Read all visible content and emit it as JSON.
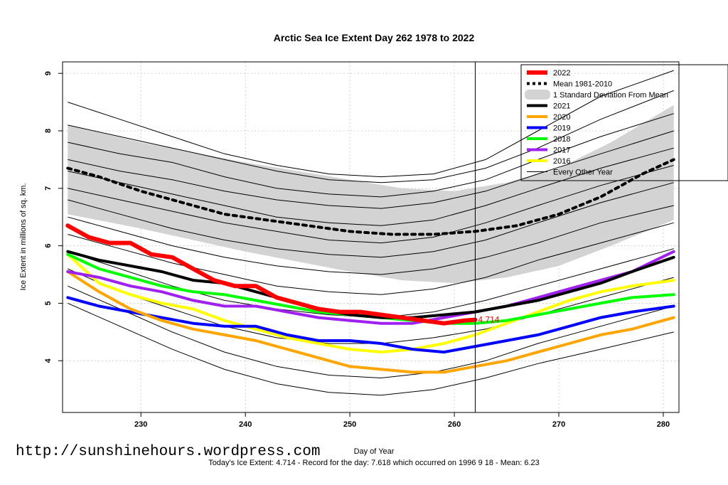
{
  "chart_data": {
    "type": "line",
    "title": "Arctic Sea Ice Extent Day 262 1978 to 2022",
    "xlabel": "Day of Year",
    "ylabel": "Ice Extent in millions of sq. km.",
    "xlim": [
      222.5,
      281.5
    ],
    "ylim": [
      3.1,
      9.2
    ],
    "xticks": [
      230,
      240,
      250,
      260,
      270,
      280
    ],
    "yticks": [
      4,
      5,
      6,
      7,
      8,
      9
    ],
    "grid": true,
    "current_day": 262,
    "current_value": 4.714,
    "current_value_label": "4.714",
    "legend_position": "top-right",
    "band": {
      "name": "1 Standard Deviation From Mean",
      "color": "#d3d3d3",
      "x": [
        223,
        230,
        240,
        250,
        255,
        260,
        265,
        270,
        275,
        281
      ],
      "upper": [
        8.1,
        7.8,
        7.45,
        7.15,
        7.0,
        6.95,
        7.1,
        7.35,
        7.8,
        8.45
      ],
      "lower": [
        6.55,
        6.3,
        5.9,
        5.55,
        5.4,
        5.35,
        5.45,
        5.65,
        6.0,
        6.45
      ]
    },
    "series": [
      {
        "name": "2022",
        "color": "#ff0000",
        "width": 6,
        "dash": "",
        "x": [
          223,
          225,
          227,
          229,
          231,
          233,
          235,
          237,
          239,
          241,
          243,
          245,
          247,
          249,
          251,
          253,
          255,
          257,
          259,
          261,
          262
        ],
        "y": [
          6.35,
          6.15,
          6.05,
          6.05,
          5.85,
          5.8,
          5.6,
          5.4,
          5.3,
          5.3,
          5.1,
          5.0,
          4.9,
          4.85,
          4.85,
          4.8,
          4.75,
          4.7,
          4.65,
          4.7,
          4.714
        ]
      },
      {
        "name": "Mean 1981-2010",
        "color": "#000000",
        "width": 4,
        "dash": "5,6",
        "x": [
          223,
          226,
          230,
          234,
          238,
          242,
          246,
          250,
          254,
          258,
          262,
          266,
          270,
          274,
          278,
          281
        ],
        "y": [
          7.35,
          7.2,
          6.95,
          6.75,
          6.55,
          6.45,
          6.35,
          6.25,
          6.2,
          6.2,
          6.25,
          6.35,
          6.55,
          6.85,
          7.25,
          7.5
        ]
      },
      {
        "name": "2021",
        "color": "#000000",
        "width": 4,
        "dash": "",
        "x": [
          223,
          226,
          229,
          232,
          235,
          238,
          241,
          244,
          247,
          250,
          253,
          256,
          259,
          262,
          265,
          268,
          271,
          274,
          277,
          281
        ],
        "y": [
          5.9,
          5.75,
          5.65,
          5.55,
          5.4,
          5.35,
          5.2,
          5.05,
          4.9,
          4.8,
          4.75,
          4.75,
          4.8,
          4.85,
          4.95,
          5.05,
          5.2,
          5.35,
          5.55,
          5.8
        ]
      },
      {
        "name": "2020",
        "color": "#ffa500",
        "width": 4,
        "dash": "",
        "x": [
          223,
          226,
          229,
          232,
          235,
          238,
          241,
          244,
          247,
          250,
          253,
          256,
          259,
          262,
          265,
          268,
          271,
          274,
          277,
          281
        ],
        "y": [
          5.55,
          5.2,
          4.9,
          4.7,
          4.55,
          4.45,
          4.35,
          4.2,
          4.05,
          3.9,
          3.85,
          3.8,
          3.8,
          3.9,
          4.0,
          4.15,
          4.3,
          4.45,
          4.55,
          4.75
        ]
      },
      {
        "name": "2019",
        "color": "#0000ff",
        "width": 4,
        "dash": "",
        "x": [
          223,
          226,
          229,
          232,
          235,
          238,
          241,
          244,
          247,
          250,
          253,
          256,
          259,
          262,
          265,
          268,
          271,
          274,
          277,
          281
        ],
        "y": [
          5.1,
          4.95,
          4.85,
          4.75,
          4.65,
          4.6,
          4.6,
          4.45,
          4.35,
          4.35,
          4.3,
          4.2,
          4.15,
          4.25,
          4.35,
          4.45,
          4.6,
          4.75,
          4.85,
          4.95
        ]
      },
      {
        "name": "2018",
        "color": "#00ff00",
        "width": 4,
        "dash": "",
        "x": [
          223,
          226,
          229,
          232,
          235,
          238,
          241,
          244,
          247,
          250,
          253,
          256,
          259,
          262,
          265,
          268,
          271,
          274,
          277,
          281
        ],
        "y": [
          5.85,
          5.6,
          5.45,
          5.3,
          5.2,
          5.15,
          5.05,
          4.95,
          4.85,
          4.8,
          4.75,
          4.7,
          4.65,
          4.65,
          4.7,
          4.8,
          4.9,
          5.0,
          5.1,
          5.15
        ]
      },
      {
        "name": "2017",
        "color": "#a020f0",
        "width": 4,
        "dash": "",
        "x": [
          223,
          226,
          229,
          232,
          235,
          238,
          241,
          244,
          247,
          250,
          253,
          256,
          259,
          262,
          265,
          268,
          271,
          274,
          277,
          281
        ],
        "y": [
          5.55,
          5.45,
          5.3,
          5.2,
          5.05,
          4.95,
          4.95,
          4.85,
          4.75,
          4.7,
          4.65,
          4.65,
          4.75,
          4.85,
          4.95,
          5.1,
          5.25,
          5.4,
          5.55,
          5.9
        ]
      },
      {
        "name": "2016",
        "color": "#ffff00",
        "width": 4,
        "dash": "",
        "x": [
          223,
          226,
          229,
          232,
          235,
          238,
          241,
          244,
          247,
          250,
          253,
          256,
          259,
          262,
          265,
          268,
          271,
          274,
          277,
          281
        ],
        "y": [
          5.85,
          5.35,
          5.15,
          5.0,
          4.9,
          4.7,
          4.55,
          4.4,
          4.3,
          4.2,
          4.15,
          4.2,
          4.3,
          4.45,
          4.65,
          4.85,
          5.05,
          5.2,
          5.3,
          5.4
        ]
      },
      {
        "name": "Every Other Year",
        "color": "#000000",
        "width": 1,
        "dash": "",
        "x": [],
        "y": []
      }
    ],
    "other_years": [
      [
        8.5,
        8.2,
        7.9,
        7.6,
        7.4,
        7.25,
        7.2,
        7.25,
        7.5,
        8.0,
        8.6,
        9.05
      ],
      [
        8.1,
        7.9,
        7.7,
        7.5,
        7.3,
        7.15,
        7.1,
        7.15,
        7.35,
        7.7,
        8.2,
        8.7
      ],
      [
        7.8,
        7.6,
        7.45,
        7.2,
        7.0,
        6.9,
        6.85,
        6.95,
        7.15,
        7.5,
        7.9,
        8.3
      ],
      [
        7.5,
        7.3,
        7.15,
        6.95,
        6.8,
        6.7,
        6.65,
        6.75,
        6.95,
        7.25,
        7.6,
        8.0
      ],
      [
        7.3,
        7.1,
        6.9,
        6.7,
        6.5,
        6.4,
        6.35,
        6.45,
        6.7,
        7.0,
        7.35,
        7.7
      ],
      [
        7.0,
        6.8,
        6.6,
        6.4,
        6.25,
        6.1,
        6.05,
        6.15,
        6.4,
        6.7,
        7.05,
        7.4
      ],
      [
        6.8,
        6.55,
        6.3,
        6.1,
        5.95,
        5.85,
        5.8,
        5.9,
        6.1,
        6.4,
        6.75,
        7.1
      ],
      [
        6.5,
        6.25,
        6.0,
        5.8,
        5.65,
        5.55,
        5.5,
        5.6,
        5.8,
        6.05,
        6.4,
        6.7
      ],
      [
        6.2,
        5.95,
        5.7,
        5.5,
        5.3,
        5.2,
        5.15,
        5.25,
        5.45,
        5.75,
        6.05,
        6.4
      ],
      [
        5.9,
        5.6,
        5.3,
        5.05,
        4.9,
        4.8,
        4.75,
        4.85,
        5.05,
        5.3,
        5.6,
        5.95
      ],
      [
        5.6,
        5.2,
        4.9,
        4.6,
        4.4,
        4.3,
        4.3,
        4.4,
        4.55,
        4.8,
        5.1,
        5.45
      ],
      [
        5.3,
        4.9,
        4.5,
        4.15,
        3.9,
        3.75,
        3.7,
        3.8,
        4.0,
        4.3,
        4.6,
        4.95
      ],
      [
        5.0,
        4.6,
        4.2,
        3.85,
        3.6,
        3.45,
        3.4,
        3.5,
        3.7,
        3.95,
        4.2,
        4.5
      ]
    ],
    "other_years_x": [
      223,
      228,
      233,
      238,
      243,
      248,
      253,
      258,
      263,
      268,
      274,
      281
    ]
  },
  "footer": {
    "url": "http://sunshinehours.wordpress.com",
    "stats": "Today's Ice Extent: 4.714  - Record for the day: 7.618 which occurred on 1996 9 18  - Mean: 6.23"
  }
}
